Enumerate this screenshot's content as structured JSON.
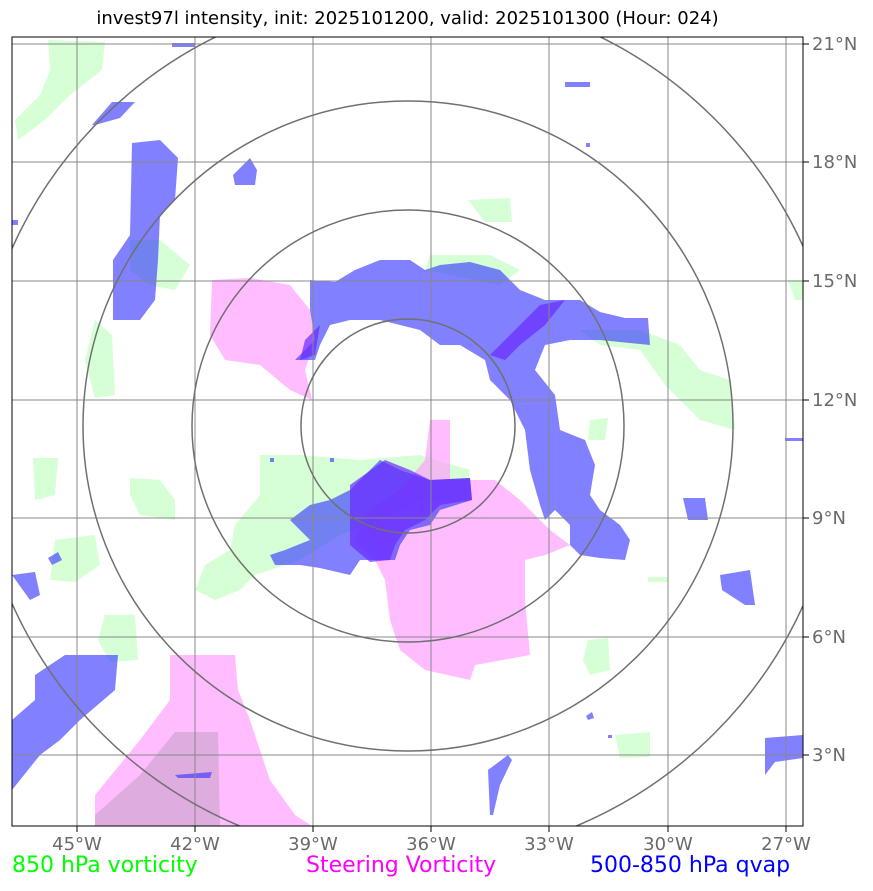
{
  "title": "invest97l intensity, init: 2025101200, valid: 2025101300 (Hour: 024)",
  "map": {
    "lon_labels": [
      "45°W",
      "42°W",
      "39°W",
      "36°W",
      "33°W",
      "30°W",
      "27°W"
    ],
    "lat_labels": [
      "21°N",
      "18°N",
      "15°N",
      "12°N",
      "9°N",
      "6°N",
      "3°N"
    ],
    "extent": {
      "lon_min": -46.6,
      "lon_max": -26.5,
      "lat_min": 1.4,
      "lat_max": 21.4
    },
    "center": {
      "lon": -36.6,
      "lat": 11.3
    },
    "range_rings_deg": [
      2.75,
      5.5,
      8.25,
      11.0
    ],
    "gridlines": true,
    "colors": {
      "vort850": "#ccffcc",
      "steering": "#ff99ff",
      "qvap": "#3333ff",
      "grid": "#888888",
      "rings": "#707070"
    }
  },
  "legend": {
    "vort850": "850 hPa vorticity",
    "steering": "Steering Vorticity",
    "qvap": "500-850 hPa qvap"
  }
}
